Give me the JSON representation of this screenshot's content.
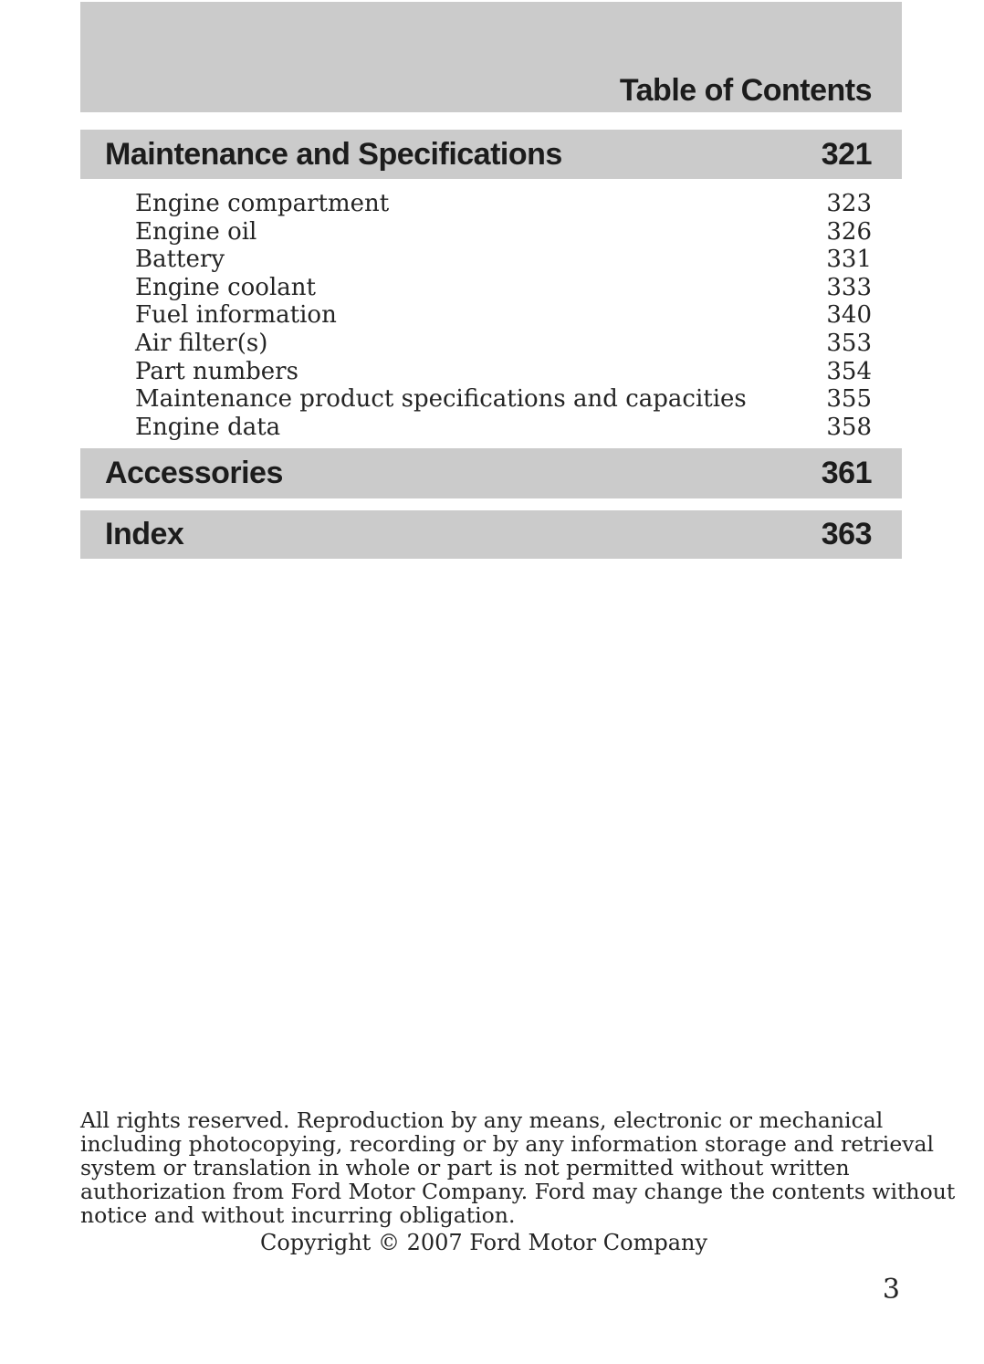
{
  "header": {
    "title": "Table of Contents"
  },
  "sections": {
    "maintenance": {
      "label": "Maintenance and Specifications",
      "page": "321"
    },
    "accessories": {
      "label": "Accessories",
      "page": "361"
    },
    "index": {
      "label": "Index",
      "page": "363"
    }
  },
  "toc_items": [
    {
      "label": "Engine compartment",
      "page": "323"
    },
    {
      "label": "Engine oil",
      "page": "326"
    },
    {
      "label": "Battery",
      "page": "331"
    },
    {
      "label": "Engine coolant",
      "page": "333"
    },
    {
      "label": "Fuel information",
      "page": "340"
    },
    {
      "label": "Air filter(s)",
      "page": "353"
    },
    {
      "label": "Part numbers",
      "page": "354"
    },
    {
      "label": "Maintenance product specifications and capacities",
      "page": "355"
    },
    {
      "label": "Engine data",
      "page": "358"
    }
  ],
  "footer": {
    "legal_lines": [
      "All rights reserved. Reproduction by any means, electronic or mechanical",
      "including photocopying, recording or by any information storage and retrieval",
      "system or translation in whole or part is not permitted without written",
      "authorization from Ford Motor Company. Ford may change the contents without",
      "notice and without incurring obligation."
    ],
    "copyright": "Copyright © 2007 Ford Motor Company",
    "page_number": "3"
  },
  "colors": {
    "bar_background": "#cbcbcb",
    "heading_text": "#1c1c1c",
    "body_text": "#242424",
    "page_background": "#ffffff"
  }
}
